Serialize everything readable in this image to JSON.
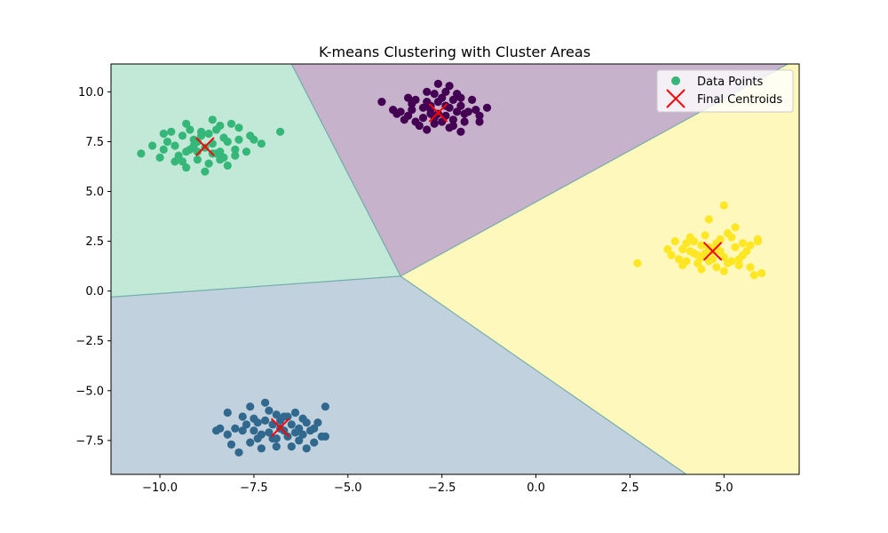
{
  "chart_data": {
    "type": "scatter",
    "title": "K-means Clustering with Cluster Areas",
    "xlabel": "",
    "ylabel": "",
    "xlim": [
      -11.3,
      7.0
    ],
    "ylim": [
      -9.2,
      11.4
    ],
    "xticks": [
      -10.0,
      -7.5,
      -5.0,
      -2.5,
      0.0,
      2.5,
      5.0
    ],
    "xtick_labels": [
      "−10.0",
      "−7.5",
      "−5.0",
      "−2.5",
      "0.0",
      "2.5",
      "5.0"
    ],
    "yticks": [
      -7.5,
      -5.0,
      -2.5,
      0.0,
      2.5,
      5.0,
      7.5,
      10.0
    ],
    "ytick_labels": [
      "−7.5",
      "−5.0",
      "−2.5",
      "0.0",
      "2.5",
      "5.0",
      "7.5",
      "10.0"
    ],
    "grid": false,
    "legend": {
      "placement": "top-right",
      "entries": [
        "Data Points",
        "Final Centroids"
      ]
    },
    "region_colors": {
      "purple": "#440154",
      "blue": "#31688e",
      "green": "#35b779",
      "yellow": "#fde725",
      "fill_opacity": 0.3
    },
    "boundaries": {
      "junction": [
        -3.6,
        0.75
      ],
      "green_purple": [
        [
          -6.5,
          11.4
        ],
        [
          -3.6,
          0.75
        ]
      ],
      "green_blue": [
        [
          -11.3,
          -0.3
        ],
        [
          -3.6,
          0.75
        ]
      ],
      "blue_yellow": [
        [
          -3.6,
          0.75
        ],
        [
          4.0,
          -9.2
        ]
      ],
      "purple_yellow": [
        [
          -3.6,
          0.75
        ],
        [
          6.7,
          11.4
        ]
      ]
    },
    "clusters": [
      {
        "color": "#440154",
        "centroid": [
          -2.6,
          8.95
        ],
        "points": [
          [
            -2.6,
            8.9
          ],
          [
            -2.3,
            9.2
          ],
          [
            -2.9,
            9.5
          ],
          [
            -2.2,
            8.6
          ],
          [
            -3.0,
            8.7
          ],
          [
            -2.5,
            9.7
          ],
          [
            -2.0,
            9.3
          ],
          [
            -3.3,
            9.1
          ],
          [
            -2.7,
            8.4
          ],
          [
            -1.8,
            9.0
          ],
          [
            -2.4,
            10.0
          ],
          [
            -3.4,
            8.8
          ],
          [
            -2.1,
            9.9
          ],
          [
            -2.8,
            9.3
          ],
          [
            -1.6,
            9.1
          ],
          [
            -3.6,
            9.0
          ],
          [
            -2.3,
            8.2
          ],
          [
            -1.9,
            8.5
          ],
          [
            -3.2,
            9.6
          ],
          [
            -2.6,
            10.4
          ],
          [
            -4.1,
            9.5
          ],
          [
            -1.5,
            8.5
          ],
          [
            -3.5,
            8.6
          ],
          [
            -2.9,
            8.1
          ],
          [
            -2.2,
            9.6
          ],
          [
            -2.0,
            8.0
          ],
          [
            -3.8,
            9.1
          ],
          [
            -2.7,
            9.9
          ],
          [
            -1.7,
            9.6
          ],
          [
            -3.1,
            8.3
          ],
          [
            -2.4,
            8.8
          ],
          [
            -2.8,
            8.9
          ],
          [
            -3.3,
            9.4
          ],
          [
            -2.1,
            9.0
          ],
          [
            -2.5,
            8.5
          ],
          [
            -1.5,
            8.8
          ],
          [
            -3.7,
            8.9
          ],
          [
            -2.9,
            10.0
          ],
          [
            -2.3,
            10.3
          ],
          [
            -3.0,
            9.2
          ],
          [
            -2.6,
            9.5
          ],
          [
            -1.3,
            9.2
          ],
          [
            -3.2,
            8.5
          ],
          [
            -2.0,
            9.7
          ],
          [
            -2.7,
            8.7
          ],
          [
            -2.4,
            9.3
          ],
          [
            -1.9,
            8.9
          ],
          [
            -3.4,
            9.7
          ],
          [
            -2.2,
            8.3
          ],
          [
            -2.8,
            9.1
          ]
        ]
      },
      {
        "color": "#31688e",
        "centroid": [
          -6.8,
          -6.85
        ],
        "points": [
          [
            -6.8,
            -6.9
          ],
          [
            -7.2,
            -6.5
          ],
          [
            -6.4,
            -7.1
          ],
          [
            -7.5,
            -7.0
          ],
          [
            -6.1,
            -6.6
          ],
          [
            -7.0,
            -7.4
          ],
          [
            -6.6,
            -6.3
          ],
          [
            -7.7,
            -6.7
          ],
          [
            -6.3,
            -7.5
          ],
          [
            -7.3,
            -7.2
          ],
          [
            -5.9,
            -6.9
          ],
          [
            -6.9,
            -6.2
          ],
          [
            -7.6,
            -7.6
          ],
          [
            -6.5,
            -7.8
          ],
          [
            -8.0,
            -6.9
          ],
          [
            -6.2,
            -6.4
          ],
          [
            -7.1,
            -6.0
          ],
          [
            -5.7,
            -7.3
          ],
          [
            -7.8,
            -6.3
          ],
          [
            -6.7,
            -7.0
          ],
          [
            -8.2,
            -7.2
          ],
          [
            -6.0,
            -7.0
          ],
          [
            -7.4,
            -6.6
          ],
          [
            -6.4,
            -6.1
          ],
          [
            -7.9,
            -8.1
          ],
          [
            -6.9,
            -7.4
          ],
          [
            -5.6,
            -5.8
          ],
          [
            -7.2,
            -5.6
          ],
          [
            -8.4,
            -6.9
          ],
          [
            -6.1,
            -7.9
          ],
          [
            -7.0,
            -6.7
          ],
          [
            -6.6,
            -7.3
          ],
          [
            -7.5,
            -6.4
          ],
          [
            -5.8,
            -6.6
          ],
          [
            -7.6,
            -5.8
          ],
          [
            -6.8,
            -6.5
          ],
          [
            -8.1,
            -7.7
          ],
          [
            -6.3,
            -6.9
          ],
          [
            -7.3,
            -7.9
          ],
          [
            -6.5,
            -6.7
          ],
          [
            -5.9,
            -7.6
          ],
          [
            -7.1,
            -7.1
          ],
          [
            -8.2,
            -6.1
          ],
          [
            -6.7,
            -6.3
          ],
          [
            -7.4,
            -7.4
          ],
          [
            -6.2,
            -7.2
          ],
          [
            -7.8,
            -7.0
          ],
          [
            -6.9,
            -7.8
          ],
          [
            -5.6,
            -7.3
          ],
          [
            -8.5,
            -7.0
          ]
        ]
      },
      {
        "color": "#35b779",
        "centroid": [
          -8.8,
          7.25
        ],
        "points": [
          [
            -8.8,
            7.2
          ],
          [
            -9.1,
            7.6
          ],
          [
            -8.5,
            6.9
          ],
          [
            -9.3,
            7.0
          ],
          [
            -8.2,
            7.5
          ],
          [
            -8.9,
            8.0
          ],
          [
            -9.6,
            7.3
          ],
          [
            -8.4,
            8.3
          ],
          [
            -9.0,
            6.6
          ],
          [
            -8.0,
            7.1
          ],
          [
            -9.4,
            7.8
          ],
          [
            -8.6,
            7.4
          ],
          [
            -9.8,
            7.5
          ],
          [
            -8.3,
            6.7
          ],
          [
            -9.2,
            8.1
          ],
          [
            -7.9,
            7.6
          ],
          [
            -8.7,
            6.4
          ],
          [
            -9.5,
            6.8
          ],
          [
            -8.1,
            8.4
          ],
          [
            -9.9,
            7.1
          ],
          [
            -8.6,
            8.6
          ],
          [
            -9.3,
            6.2
          ],
          [
            -7.7,
            7.0
          ],
          [
            -10.0,
            6.7
          ],
          [
            -8.4,
            7.0
          ],
          [
            -9.1,
            7.3
          ],
          [
            -8.2,
            6.3
          ],
          [
            -9.7,
            8.0
          ],
          [
            -7.9,
            8.2
          ],
          [
            -8.8,
            6.0
          ],
          [
            -10.2,
            7.3
          ],
          [
            -7.6,
            7.8
          ],
          [
            -8.9,
            7.8
          ],
          [
            -9.4,
            6.5
          ],
          [
            -8.3,
            7.7
          ],
          [
            -9.0,
            7.5
          ],
          [
            -7.5,
            7.6
          ],
          [
            -10.5,
            6.9
          ],
          [
            -8.5,
            8.1
          ],
          [
            -9.6,
            6.5
          ],
          [
            -8.0,
            6.8
          ],
          [
            -9.2,
            7.1
          ],
          [
            -8.7,
            7.9
          ],
          [
            -9.9,
            7.9
          ],
          [
            -7.3,
            7.4
          ],
          [
            -8.4,
            6.6
          ],
          [
            -9.3,
            8.4
          ],
          [
            -6.8,
            8.0
          ],
          [
            -8.6,
            6.9
          ],
          [
            -9.0,
            7.0
          ]
        ]
      },
      {
        "color": "#fde725",
        "centroid": [
          4.7,
          2.0
        ],
        "points": [
          [
            4.7,
            2.0
          ],
          [
            4.4,
            2.3
          ],
          [
            5.0,
            1.7
          ],
          [
            4.2,
            1.9
          ],
          [
            5.3,
            2.2
          ],
          [
            4.6,
            1.5
          ],
          [
            4.9,
            2.6
          ],
          [
            3.9,
            2.1
          ],
          [
            5.5,
            1.8
          ],
          [
            4.3,
            1.4
          ],
          [
            5.1,
            2.9
          ],
          [
            4.0,
            2.4
          ],
          [
            5.7,
            2.3
          ],
          [
            4.5,
            2.8
          ],
          [
            3.8,
            1.6
          ],
          [
            5.4,
            1.3
          ],
          [
            4.8,
            1.2
          ],
          [
            4.1,
            2.7
          ],
          [
            5.9,
            2.5
          ],
          [
            4.6,
            2.2
          ],
          [
            3.6,
            1.8
          ],
          [
            5.2,
            1.5
          ],
          [
            4.9,
            2.0
          ],
          [
            4.4,
            1.1
          ],
          [
            5.6,
            2.0
          ],
          [
            4.0,
            1.5
          ],
          [
            4.6,
            3.6
          ],
          [
            5.3,
            3.2
          ],
          [
            5.0,
            4.3
          ],
          [
            3.5,
            2.1
          ],
          [
            6.0,
            0.9
          ],
          [
            2.7,
            1.4
          ],
          [
            5.8,
            0.8
          ],
          [
            4.2,
            2.5
          ],
          [
            5.5,
            2.4
          ],
          [
            3.9,
            1.3
          ],
          [
            4.8,
            2.4
          ],
          [
            5.1,
            1.4
          ],
          [
            4.3,
            1.8
          ],
          [
            5.7,
            1.2
          ],
          [
            4.5,
            1.9
          ],
          [
            3.7,
            2.5
          ],
          [
            5.9,
            2.6
          ],
          [
            4.7,
            1.6
          ],
          [
            5.2,
            2.7
          ],
          [
            4.1,
            2.0
          ],
          [
            5.4,
            1.6
          ],
          [
            4.4,
            1.7
          ],
          [
            5.0,
            1.0
          ],
          [
            4.8,
            2.2
          ]
        ]
      }
    ],
    "data_point_legend_color": "#35b779",
    "centroid_color": "#ff0000"
  }
}
